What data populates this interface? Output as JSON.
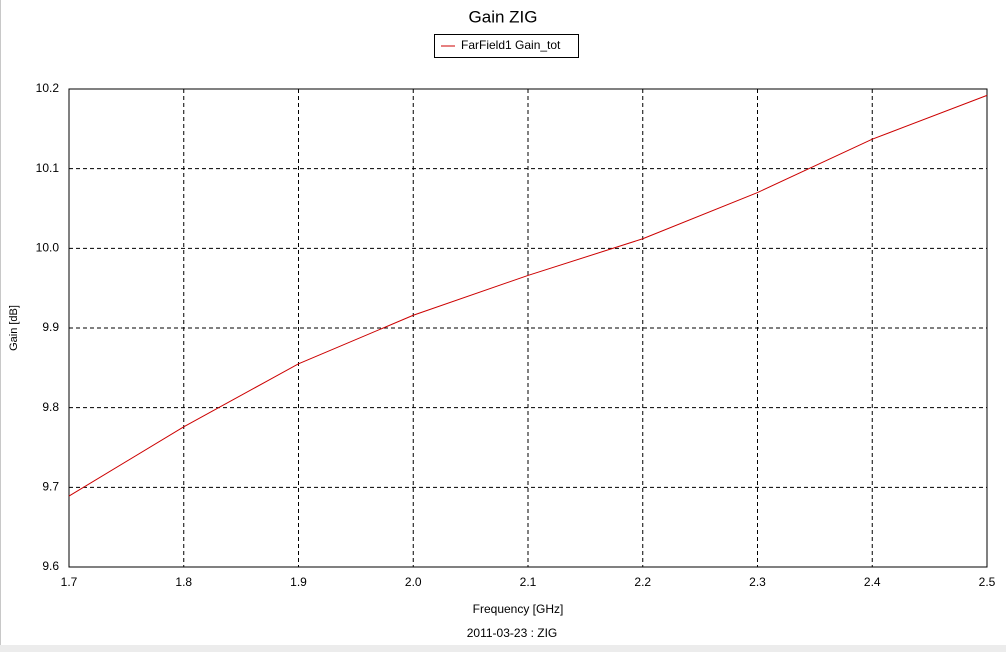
{
  "chart_data": {
    "type": "line",
    "title": "Gain ZIG",
    "x_label": "Frequency [GHz]",
    "y_label": "Gain [dB]",
    "footer": "2011-03-23 : ZIG",
    "x": [
      1.7,
      1.8,
      1.9,
      2.0,
      2.1,
      2.2,
      2.3,
      2.4,
      2.5
    ],
    "series": [
      {
        "name": "FarField1 Gain_tot",
        "color": "#cc0000",
        "values": [
          9.689,
          9.776,
          9.855,
          9.916,
          9.966,
          10.012,
          10.07,
          10.137,
          10.192
        ]
      }
    ],
    "xlim": [
      1.7,
      2.5
    ],
    "xticks": [
      1.7,
      1.8,
      1.9,
      {
        "value": 2,
        "label": "2.0"
      },
      2.1,
      2.2,
      2.3,
      2.4,
      2.5
    ],
    "ylim": [
      9.6,
      10.2
    ],
    "yticks": [
      9.6,
      9.7,
      9.8,
      9.9,
      {
        "value": 10,
        "label": "10.0"
      },
      10.1,
      10.2
    ],
    "grid": true
  }
}
